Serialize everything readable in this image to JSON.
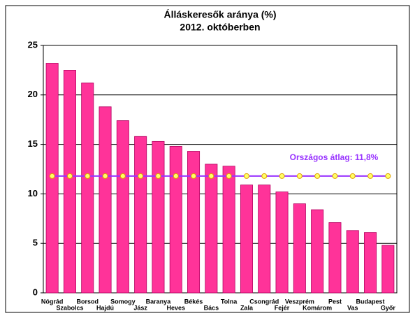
{
  "chart_data": {
    "type": "bar",
    "title": "Álláskeresők aránya (%)",
    "subtitle": "2012. októberben",
    "categories": [
      "Nógrád",
      "Szabolcs",
      "Borsod",
      "Hajdú",
      "Somogy",
      "Jász",
      "Baranya",
      "Heves",
      "Békés",
      "Bács",
      "Tolna",
      "Zala",
      "Csongrád",
      "Fejér",
      "Veszprém",
      "Komárom",
      "Pest",
      "Vas",
      "Budapest",
      "Győr"
    ],
    "values": [
      23.2,
      22.5,
      21.2,
      18.8,
      17.4,
      15.8,
      15.3,
      14.8,
      14.3,
      13.0,
      12.8,
      10.9,
      10.9,
      10.2,
      9.0,
      8.4,
      7.1,
      6.3,
      6.1,
      4.8
    ],
    "color": "#ff3399",
    "average": {
      "values": [
        11.8,
        11.8,
        11.8,
        11.8,
        11.8,
        11.8,
        11.8,
        11.8,
        11.8,
        11.8,
        11.8,
        11.8,
        11.8,
        11.8,
        11.8,
        11.8,
        11.8,
        11.8,
        11.8,
        11.8
      ],
      "color": "#9933ff",
      "marker_color": "#ffff66"
    },
    "annotation": "Országos átlag: 11,8%",
    "ylim": [
      0,
      25
    ],
    "yticks": [
      0,
      5,
      10,
      15,
      20,
      25
    ],
    "grid": true
  }
}
